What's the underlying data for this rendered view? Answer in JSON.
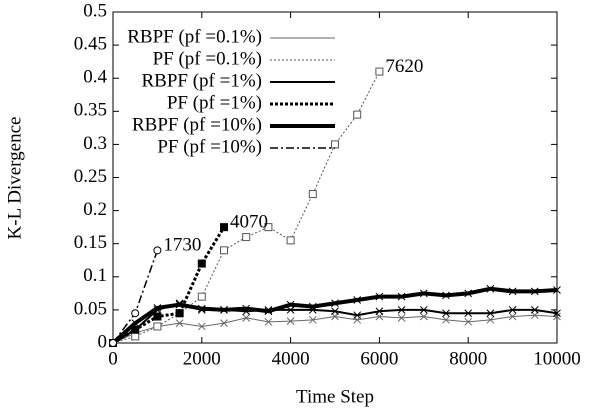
{
  "chart_data": {
    "type": "line",
    "xlabel": "Time Step",
    "ylabel": "K-L Divergence",
    "xlim": [
      0,
      10000
    ],
    "xticks": [
      0,
      2000,
      4000,
      6000,
      8000,
      10000
    ],
    "ylim": [
      0,
      0.5
    ],
    "yticks": [
      0,
      0.05,
      0.1,
      0.15,
      0.2,
      0.25,
      0.3,
      0.35,
      0.4,
      0.45,
      0.5
    ],
    "legend": "top-left",
    "series": [
      {
        "name": "RBPF (pf =0.1%)",
        "color": "#666666",
        "width": 1,
        "dash": "none",
        "marker": "x",
        "x": [
          0,
          500,
          1000,
          1500,
          2000,
          2500,
          3000,
          3500,
          4000,
          4500,
          5000,
          5500,
          6000,
          6500,
          7000,
          7500,
          8000,
          8500,
          9000,
          9500,
          10000
        ],
        "values": [
          0,
          0.015,
          0.025,
          0.03,
          0.025,
          0.03,
          0.038,
          0.032,
          0.033,
          0.035,
          0.04,
          0.035,
          0.04,
          0.038,
          0.04,
          0.035,
          0.032,
          0.035,
          0.04,
          0.042,
          0.04
        ]
      },
      {
        "name": "PF (pf =0.1%)",
        "color": "#555555",
        "width": 1,
        "dash": "2 2",
        "marker": "square",
        "x": [
          0,
          500,
          1000,
          1500,
          2000,
          2500,
          3000,
          3500,
          4000,
          4500,
          5000,
          5500,
          6000
        ],
        "values": [
          0,
          0.01,
          0.025,
          0.045,
          0.07,
          0.14,
          0.16,
          0.175,
          0.155,
          0.225,
          0.3,
          0.345,
          0.41
        ],
        "annotation": "7620"
      },
      {
        "name": "RBPF (pf =1%)",
        "color": "#000000",
        "width": 2,
        "dash": "none",
        "marker": "x",
        "x": [
          0,
          500,
          1000,
          1500,
          2000,
          2500,
          3000,
          3500,
          4000,
          4500,
          5000,
          5500,
          6000,
          6500,
          7000,
          7500,
          8000,
          8500,
          9000,
          9500,
          10000
        ],
        "values": [
          0,
          0.02,
          0.05,
          0.06,
          0.05,
          0.05,
          0.048,
          0.05,
          0.05,
          0.05,
          0.048,
          0.042,
          0.048,
          0.05,
          0.05,
          0.045,
          0.045,
          0.045,
          0.05,
          0.05,
          0.045
        ]
      },
      {
        "name": "PF (pf =1%)",
        "color": "#000000",
        "width": 3,
        "dash": "3 2",
        "marker": "filled-square",
        "x": [
          0,
          500,
          1000,
          1500,
          2000,
          2500
        ],
        "values": [
          0,
          0.02,
          0.04,
          0.045,
          0.12,
          0.175
        ],
        "annotation": "4070"
      },
      {
        "name": "RBPF (pf =10%)",
        "color": "#000000",
        "width": 4,
        "dash": "none",
        "marker": "x",
        "x": [
          0,
          500,
          1000,
          1500,
          2000,
          2500,
          3000,
          3500,
          4000,
          4500,
          5000,
          5500,
          6000,
          6500,
          7000,
          7500,
          8000,
          8500,
          9000,
          9500,
          10000
        ],
        "values": [
          0,
          0.03,
          0.053,
          0.058,
          0.052,
          0.05,
          0.052,
          0.048,
          0.058,
          0.055,
          0.06,
          0.065,
          0.07,
          0.07,
          0.075,
          0.072,
          0.075,
          0.082,
          0.078,
          0.078,
          0.08
        ]
      },
      {
        "name": "PF (pf =10%)",
        "color": "#000000",
        "width": 1.5,
        "dash": "8 3 2 3",
        "marker": "circle",
        "x": [
          0,
          500,
          1000
        ],
        "values": [
          0,
          0.045,
          0.14
        ],
        "annotation": "1730"
      }
    ]
  }
}
